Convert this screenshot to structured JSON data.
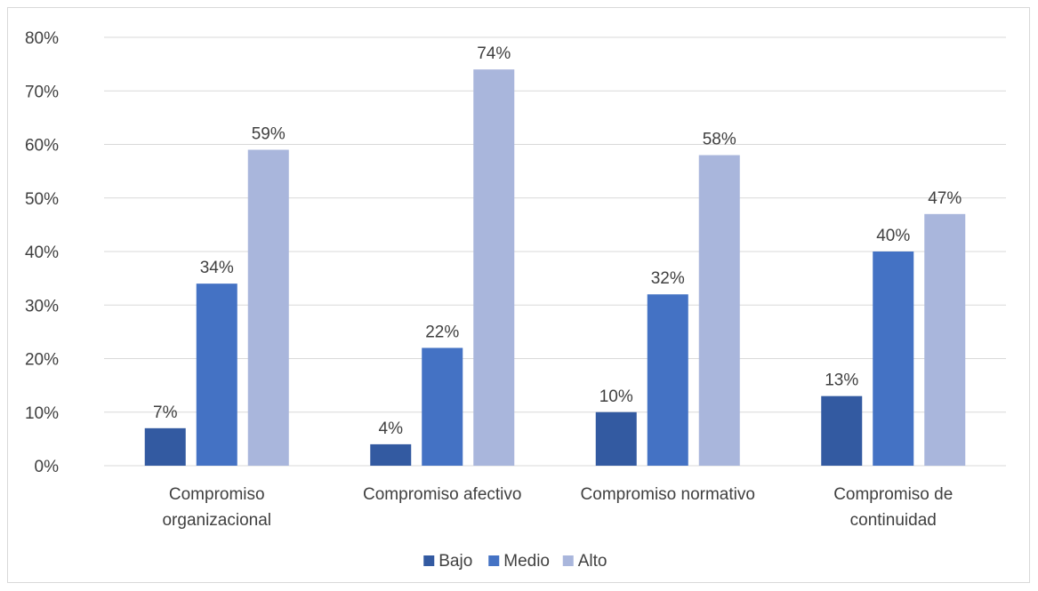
{
  "chart_data": {
    "type": "bar",
    "categories": [
      [
        "Compromiso",
        "organizacional"
      ],
      [
        "Compromiso afectivo"
      ],
      [
        "Compromiso normativo"
      ],
      [
        "Compromiso de",
        "continuidad"
      ]
    ],
    "series": [
      {
        "name": "Bajo",
        "color": "#335aa1",
        "values": [
          7,
          4,
          10,
          13
        ],
        "labels": [
          "7%",
          "4%",
          "10%",
          "13%"
        ]
      },
      {
        "name": "Medio",
        "color": "#4472c4",
        "values": [
          34,
          22,
          32,
          40
        ],
        "labels": [
          "34%",
          "22%",
          "32%",
          "40%"
        ]
      },
      {
        "name": "Alto",
        "color": "#a9b6dc",
        "values": [
          59,
          74,
          58,
          47
        ],
        "labels": [
          "59%",
          "74%",
          "58%",
          "47%"
        ]
      }
    ],
    "ylim": [
      0,
      80
    ],
    "yticks": [
      0,
      10,
      20,
      30,
      40,
      50,
      60,
      70,
      80
    ],
    "ytick_labels": [
      "0%",
      "10%",
      "20%",
      "30%",
      "40%",
      "50%",
      "60%",
      "70%",
      "80%"
    ],
    "grid": true,
    "legend_position": "bottom",
    "title": "",
    "xlabel": "",
    "ylabel": ""
  }
}
